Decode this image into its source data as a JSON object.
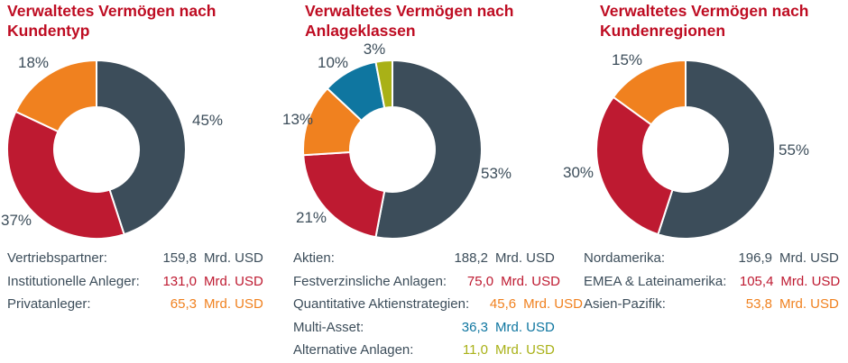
{
  "unit": "Mrd. USD",
  "charts": [
    {
      "title": "Verwaltetes Vermögen nach\nKundentyp",
      "segments": [
        {
          "label": "Vertriebspartner:",
          "value": "159,8",
          "pct": 45,
          "pct_label": "45%",
          "color": "#3c4d5a"
        },
        {
          "label": "Institutionelle Anleger:",
          "value": "131,0",
          "pct": 37,
          "pct_label": "37%",
          "color": "#be1a31"
        },
        {
          "label": "Privatanleger:",
          "value": "65,3",
          "pct": 18,
          "pct_label": "18%",
          "color": "#f0811f"
        }
      ]
    },
    {
      "title": "Verwaltetes Vermögen nach\nAnlageklassen",
      "segments": [
        {
          "label": "Aktien:",
          "value": "188,2",
          "pct": 53,
          "pct_label": "53%",
          "color": "#3c4d5a"
        },
        {
          "label": "Festverzinsliche Anlagen:",
          "value": "75,0",
          "pct": 21,
          "pct_label": "21%",
          "color": "#be1a31"
        },
        {
          "label": "Quantitative Aktienstrategien:",
          "value": "45,6",
          "pct": 13,
          "pct_label": "13%",
          "color": "#f0811f"
        },
        {
          "label": "Multi-Asset:",
          "value": "36,3",
          "pct": 10,
          "pct_label": "10%",
          "color": "#0f76a0"
        },
        {
          "label": "Alternative Anlagen:",
          "value": "11,0",
          "pct": 3,
          "pct_label": "3%",
          "color": "#a9b117"
        }
      ]
    },
    {
      "title": "Verwaltetes Vermögen nach\nKundenregionen",
      "segments": [
        {
          "label": "Nordamerika:",
          "value": "196,9",
          "pct": 55,
          "pct_label": "55%",
          "color": "#3c4d5a"
        },
        {
          "label": "EMEA & Lateinamerika:",
          "value": "105,4",
          "pct": 30,
          "pct_label": "30%",
          "color": "#be1a31"
        },
        {
          "label": "Asien-Pazifik:",
          "value": "53,8",
          "pct": 15,
          "pct_label": "15%",
          "color": "#f0811f"
        }
      ]
    }
  ],
  "chart_data": [
    {
      "type": "pie",
      "subtype": "donut",
      "title": "Verwaltetes Vermögen nach Kundentyp",
      "labels": [
        "Vertriebspartner",
        "Institutionelle Anleger",
        "Privatanleger"
      ],
      "percent": [
        45,
        37,
        18
      ],
      "values": [
        159.8,
        131.0,
        65.3
      ],
      "unit": "Mrd. USD",
      "colors": [
        "#3c4d5a",
        "#be1a31",
        "#f0811f"
      ],
      "start_angle": "12 o'clock, clockwise",
      "inner_radius_ratio": 0.47
    },
    {
      "type": "pie",
      "subtype": "donut",
      "title": "Verwaltetes Vermögen nach Anlageklassen",
      "labels": [
        "Aktien",
        "Festverzinsliche Anlagen",
        "Quantitative Aktienstrategien",
        "Multi-Asset",
        "Alternative Anlagen"
      ],
      "percent": [
        53,
        21,
        13,
        10,
        3
      ],
      "values": [
        188.2,
        75.0,
        45.6,
        36.3,
        11.0
      ],
      "unit": "Mrd. USD",
      "colors": [
        "#3c4d5a",
        "#be1a31",
        "#f0811f",
        "#0f76a0",
        "#a9b117"
      ],
      "start_angle": "12 o'clock, clockwise",
      "inner_radius_ratio": 0.47
    },
    {
      "type": "pie",
      "subtype": "donut",
      "title": "Verwaltetes Vermögen nach Kundenregionen",
      "labels": [
        "Nordamerika",
        "EMEA & Lateinamerika",
        "Asien-Pazifik"
      ],
      "percent": [
        55,
        30,
        15
      ],
      "values": [
        196.9,
        105.4,
        53.8
      ],
      "unit": "Mrd. USD",
      "colors": [
        "#3c4d5a",
        "#be1a31",
        "#f0811f"
      ],
      "start_angle": "12 o'clock, clockwise",
      "inner_radius_ratio": 0.47
    }
  ]
}
